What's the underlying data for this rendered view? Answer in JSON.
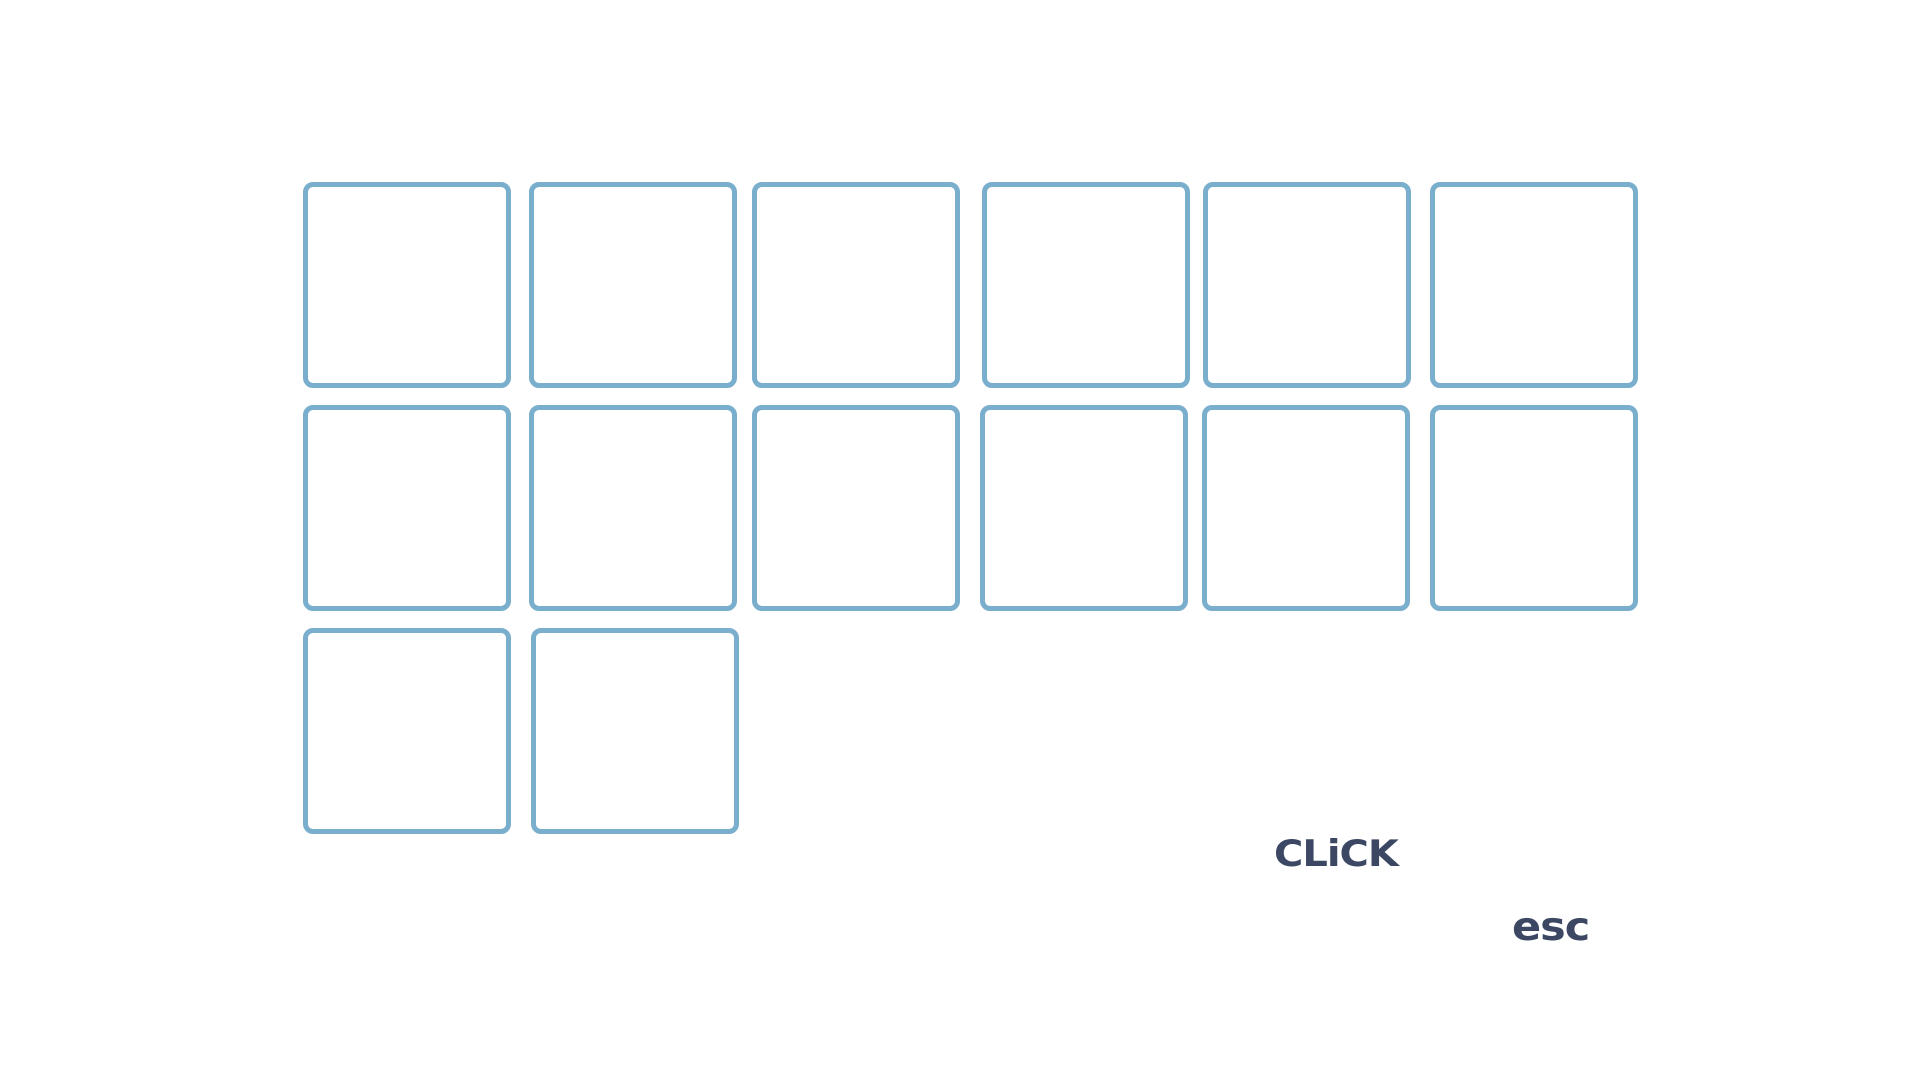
{
  "hints": {
    "click_label": "CLiCK",
    "esc_label": "esc"
  },
  "colors": {
    "slot_border": "#7aaecd",
    "hint_text": "#3b4763",
    "background": "#ffffff"
  },
  "grid": {
    "rows": 3,
    "slot_count": 14,
    "slots_filled": 0
  }
}
